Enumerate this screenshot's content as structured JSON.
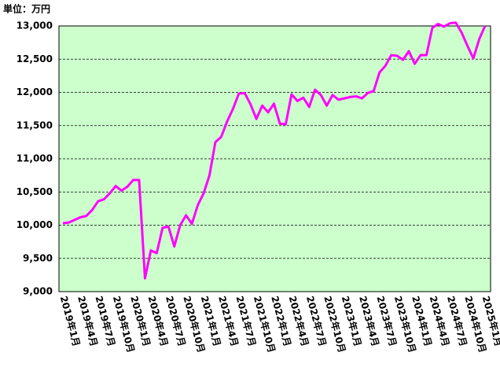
{
  "chart_data": {
    "type": "line",
    "unit_label": "単位：万円",
    "categories": [
      "2019年1月",
      null,
      null,
      "2019年4月",
      null,
      null,
      "2019年7月",
      null,
      null,
      "2019年10月",
      null,
      null,
      "2020年1月",
      null,
      null,
      "2020年4月",
      null,
      null,
      "2020年7月",
      null,
      null,
      "2020年10月",
      null,
      null,
      "2021年1月",
      null,
      null,
      "2021年4月",
      null,
      null,
      "2021年7月",
      null,
      null,
      "2021年10月",
      null,
      null,
      "2022年1月",
      null,
      null,
      "2022年4月",
      null,
      null,
      "2022年7月",
      null,
      null,
      "2022年10月",
      null,
      null,
      "2023年1月",
      null,
      null,
      "2023年4月",
      null,
      null,
      "2023年7月",
      null,
      null,
      "2023年10月",
      null,
      null,
      "2024年1月",
      null,
      null,
      "2024年4月",
      null,
      null,
      "2024年7月",
      null,
      null,
      "2024年10月",
      null,
      null,
      "2025年1月"
    ],
    "values": [
      10030,
      10040,
      10080,
      10120,
      10140,
      10230,
      10360,
      10390,
      10480,
      10590,
      10520,
      10580,
      10680,
      10680,
      9200,
      9620,
      9580,
      9960,
      9980,
      9680,
      10000,
      10150,
      10020,
      10300,
      10480,
      10750,
      11250,
      11330,
      11560,
      11750,
      11980,
      11990,
      11820,
      11600,
      11800,
      11700,
      11830,
      11530,
      11520,
      11970,
      11870,
      11920,
      11780,
      12040,
      11960,
      11800,
      11960,
      11890,
      11910,
      11930,
      11940,
      11910,
      11990,
      12020,
      12300,
      12400,
      12560,
      12550,
      12490,
      12620,
      12430,
      12560,
      12560,
      12970,
      13030,
      12990,
      13040,
      13050,
      12900,
      12700,
      12510,
      12800,
      13000
    ],
    "color": "#ff00ff",
    "ylim": [
      9000,
      13000
    ],
    "yticks": [
      {
        "value": 9000,
        "label": "9,000"
      },
      {
        "value": 9500,
        "label": "9,500"
      },
      {
        "value": 10000,
        "label": "10,000"
      },
      {
        "value": 10500,
        "label": "10,500"
      },
      {
        "value": 11000,
        "label": "11,000"
      },
      {
        "value": 11500,
        "label": "11,500"
      },
      {
        "value": 12000,
        "label": "12,000"
      },
      {
        "value": 12500,
        "label": "12,500"
      },
      {
        "value": 13000,
        "label": "13,000"
      }
    ],
    "grid": true,
    "background": "#ccffcc"
  }
}
